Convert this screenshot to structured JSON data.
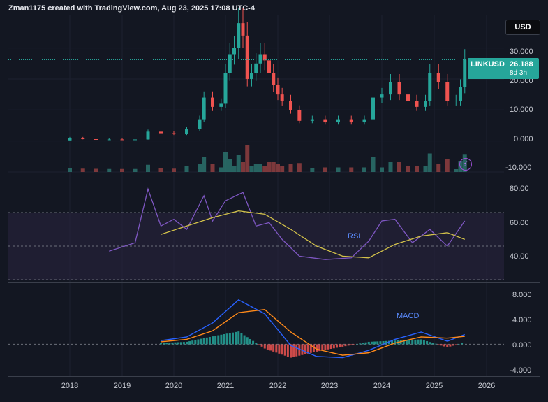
{
  "header": {
    "attribution": "Zman1175 created with TradingView.com, Aug 23, 2025 17:08 UTC-4"
  },
  "currency_button": {
    "label": "USD"
  },
  "price_tag": {
    "symbol": "LINKUSD",
    "price": "26.188",
    "countdown": "8d 3h"
  },
  "price_axis": [
    "30.000",
    "20.000",
    "10.000",
    "0.000",
    "-10.000"
  ],
  "rsi_axis": [
    "80.00",
    "60.00",
    "40.00"
  ],
  "macd_axis": [
    "8.000",
    "4.000",
    "0.000",
    "-4.000"
  ],
  "time_axis": [
    "2018",
    "2019",
    "2020",
    "2021",
    "2022",
    "2023",
    "2024",
    "2025",
    "2026"
  ],
  "indicators": {
    "rsi_label": "RSI",
    "macd_label": "MACD"
  },
  "icons": {
    "alert": "lightning-icon"
  },
  "colors": {
    "up": "#26a69a",
    "down": "#ef5350",
    "rsi": "#7e57c2",
    "rsi_ma": "#d4c34a",
    "macd": "#2962ff",
    "signal": "#ff8a1a",
    "band": "#2a2440"
  },
  "chart_data": [
    {
      "type": "line",
      "title": "LINKUSD",
      "series": [
        {
          "name": "LINKUSD",
          "x": [
            "2017-10",
            "2018-01",
            "2018-04",
            "2018-07",
            "2018-10",
            "2019-01",
            "2019-04",
            "2019-07",
            "2019-10",
            "2020-01",
            "2020-04",
            "2020-07",
            "2020-08",
            "2020-10",
            "2020-12",
            "2021-01",
            "2021-02",
            "2021-03",
            "2021-04",
            "2021-05",
            "2021-06",
            "2021-07",
            "2021-08",
            "2021-09",
            "2021-10",
            "2021-11",
            "2021-12",
            "2022-01",
            "2022-02",
            "2022-04",
            "2022-06",
            "2022-09",
            "2022-12",
            "2023-03",
            "2023-06",
            "2023-09",
            "2023-11",
            "2024-01",
            "2024-03",
            "2024-05",
            "2024-07",
            "2024-09",
            "2024-11",
            "2024-12",
            "2025-02",
            "2025-04",
            "2025-06",
            "2025-07",
            "2025-08"
          ],
          "values": [
            0.2,
            0.9,
            0.6,
            0.4,
            0.5,
            0.4,
            0.5,
            3.0,
            2.5,
            2.2,
            3.8,
            7.0,
            14.0,
            11.0,
            12.0,
            22.0,
            28.0,
            30.0,
            38.0,
            34.0,
            20.0,
            22.0,
            25.0,
            28.0,
            26.0,
            22.0,
            18.0,
            15.0,
            13.0,
            10.0,
            6.5,
            7.0,
            6.0,
            7.0,
            6.0,
            7.0,
            14.0,
            15.0,
            19.0,
            15.0,
            13.0,
            11.0,
            13.0,
            22.0,
            19.0,
            13.0,
            13.0,
            17.5,
            26.188
          ]
        }
      ],
      "ylim": [
        -10,
        36
      ]
    },
    {
      "type": "line",
      "title": "RSI",
      "series": [
        {
          "name": "RSI",
          "x": [
            "2018-10",
            "2019-04",
            "2019-07",
            "2019-10",
            "2020-01",
            "2020-04",
            "2020-08",
            "2020-10",
            "2021-01",
            "2021-05",
            "2021-08",
            "2021-11",
            "2022-02",
            "2022-06",
            "2022-12",
            "2023-06",
            "2023-10",
            "2024-01",
            "2024-04",
            "2024-08",
            "2024-12",
            "2025-04",
            "2025-08"
          ],
          "values": [
            47,
            52,
            84,
            62,
            66,
            60,
            80,
            65,
            77,
            82,
            62,
            64,
            54,
            44,
            42,
            43,
            53,
            65,
            66,
            52,
            60,
            50,
            65
          ]
        },
        {
          "name": "RSI-MA",
          "x": [
            "2019-10",
            "2020-04",
            "2020-10",
            "2021-04",
            "2021-10",
            "2022-04",
            "2022-10",
            "2023-04",
            "2023-10",
            "2024-04",
            "2024-10",
            "2025-04",
            "2025-08"
          ],
          "values": [
            57,
            62,
            67,
            71,
            69,
            60,
            50,
            44,
            43,
            51,
            56,
            58,
            54
          ]
        }
      ],
      "ylim": [
        30,
        90
      ]
    },
    {
      "type": "line",
      "title": "MACD",
      "series": [
        {
          "name": "MACD",
          "x": [
            "2019-10",
            "2020-04",
            "2020-10",
            "2021-04",
            "2021-10",
            "2022-04",
            "2022-10",
            "2023-04",
            "2023-10",
            "2024-04",
            "2024-10",
            "2025-04",
            "2025-08"
          ],
          "values": [
            0.6,
            1.2,
            3.5,
            7.3,
            5.0,
            -0.2,
            -2.0,
            -2.2,
            -1.0,
            0.8,
            2.0,
            0.5,
            1.6
          ]
        },
        {
          "name": "Signal",
          "x": [
            "2019-10",
            "2020-04",
            "2020-10",
            "2021-04",
            "2021-10",
            "2022-04",
            "2022-10",
            "2023-04",
            "2023-10",
            "2024-04",
            "2024-10",
            "2025-04",
            "2025-08"
          ],
          "values": [
            0.4,
            0.8,
            2.2,
            5.2,
            5.7,
            2.0,
            -0.8,
            -1.8,
            -1.4,
            0.2,
            1.2,
            1.0,
            1.3
          ]
        }
      ],
      "ylim": [
        -5,
        9
      ]
    }
  ]
}
